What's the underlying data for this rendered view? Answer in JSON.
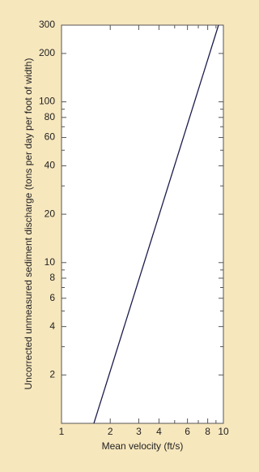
{
  "chart_data": {
    "type": "line",
    "x_label": "Mean velocity (ft/s)",
    "y_label": "Uncorrected unmeasured sediment discharge (tons per day per foot of width)",
    "xscale": "log",
    "yscale": "log",
    "xlim": [
      1,
      10
    ],
    "ylim": [
      1,
      300
    ],
    "xticks": [
      1,
      2,
      3,
      4,
      6,
      8,
      10
    ],
    "xminor": [
      5,
      7,
      9
    ],
    "yticks": [
      2,
      4,
      6,
      8,
      10,
      20,
      40,
      60,
      80,
      100,
      200,
      300
    ],
    "yminor": [
      3,
      5,
      7,
      9,
      30,
      50,
      70,
      90
    ],
    "series": [
      {
        "color": "#1c1c4c",
        "x": [
          1.585,
          9.33
        ],
        "values": [
          1,
          300
        ]
      }
    ]
  }
}
